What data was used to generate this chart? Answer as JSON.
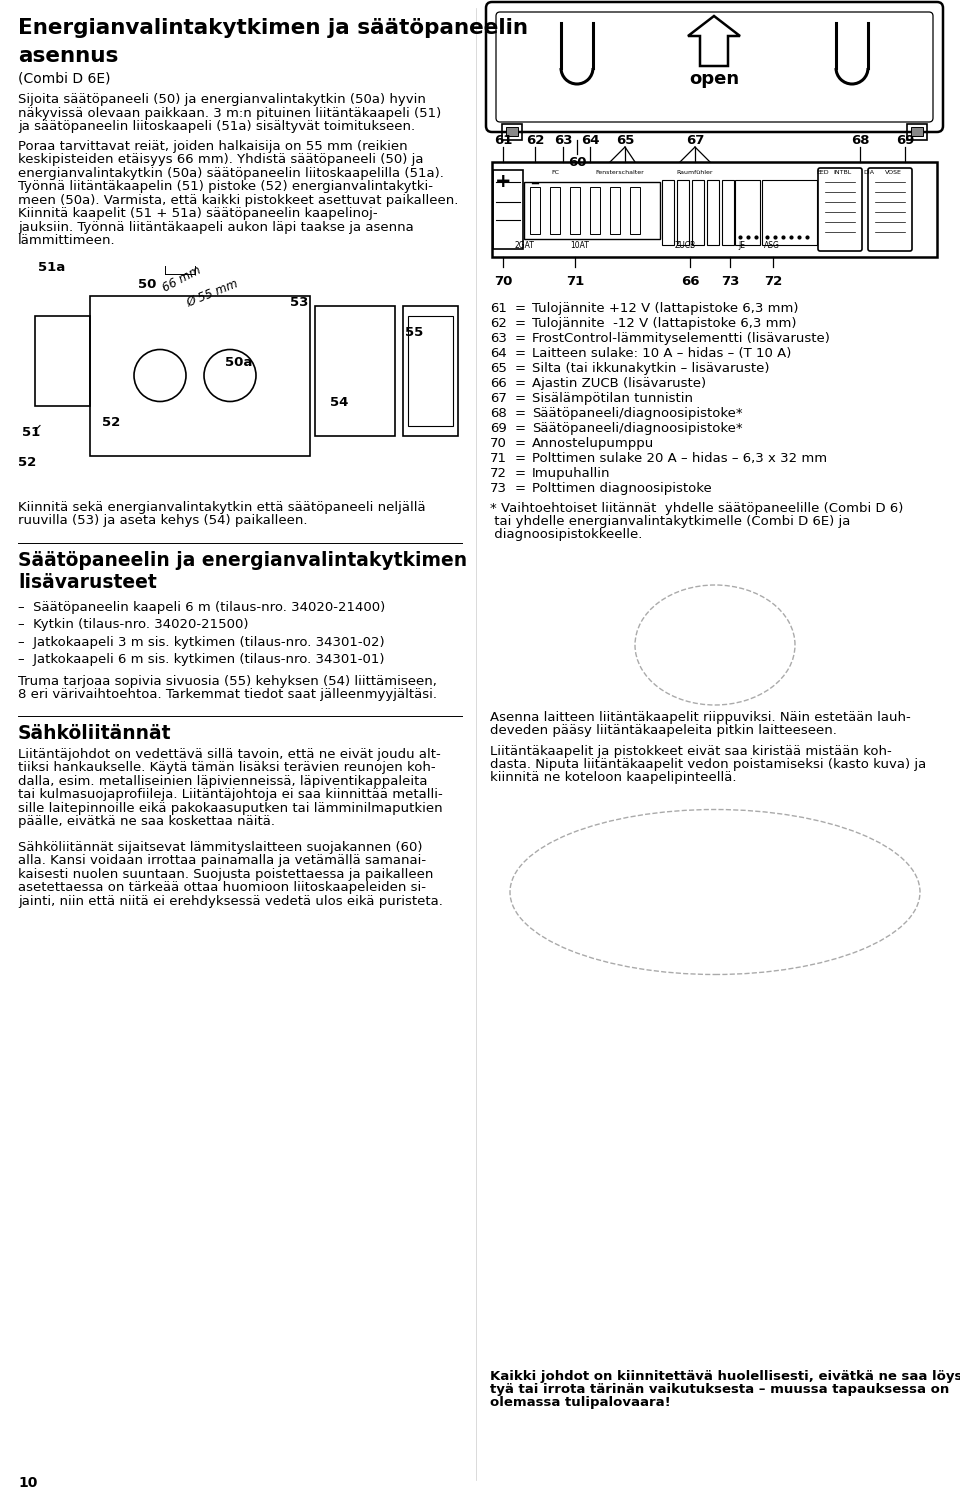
{
  "title_line1": "Energianvalintakytkimen ja säätöpaneelin",
  "title_line2": "asennus",
  "subtitle": "(Combi D 6E)",
  "para1": "Sijoita säätöpaneeli (50) ja energianvalintakytkin (50a) hyvin näkyvissä olevaan paikkaan. 3 m:n pituinen liitäntäkaapeli (51) ja säätöpaneelin liitoskaapeli (51a) sisältyvät toimitukseen.",
  "para2_lines": [
    "Poraa tarvittavat reiät, joiden halkaisija on 55 mm (reikien",
    "keskipisteiden etäisyys 66 mm). Yhdistä säätöpaneeli (50) ja",
    "energianvalintakytkin (50a) säätöpaneelin liitoskaapelilla (51a).",
    "Työnnä liitäntäkaapelin (51) pistoke (52) energianvalintakytki-",
    "meen (50a). Varmista, että kaikki pistokkeet asettuvat paikalleen.",
    "Kiinnitä kaapelit (51 + 51a) säätöpaneelin kaapelinoj-",
    "jauksiin. Työnnä liitäntäkaapeli aukon läpi taakse ja asenna",
    "lämmittimeen."
  ],
  "footnote1_lines": [
    "Kiinnitä sekä energianvalintakytkin että säätöpaneeli neljällä",
    "ruuvilla (53) ja aseta kehys (54) paikalleen."
  ],
  "section2_title_lines": [
    "Säätöpaneelin ja energianvalintakytkimen",
    "lisävarusteet"
  ],
  "bullet1": "–  Säätöpaneelin kaapeli 6 m (tilaus-nro. 34020-21400)",
  "bullet2": "–  Kytkin (tilaus-nro. 34020-21500)",
  "bullet3": "–  Jatkokaapeli 3 m sis. kytkimen (tilaus-nro. 34301-02)",
  "bullet4": "–  Jatkokaapeli 6 m sis. kytkimen (tilaus-nro. 34301-01)",
  "para3_lines": [
    "Truma tarjoaa sopivia sivuosia (55) kehyksen (54) liittämiseen,",
    "8 eri värivaihtoehtoa. Tarkemmat tiedot saat jälleenmyyjältäsi."
  ],
  "section3_title": "Sähköliitännät",
  "para4_lines": [
    "Liitäntäjohdot on vedettävä sillä tavoin, että ne eivät joudu alt-",
    "tiiksi hankaukselle. Käytä tämän lisäksi terävien reunojen koh-",
    "dalla, esim. metalliseinien läpivienneissä, läpiventikappaleita",
    "tai kulmasuojaprofiileja. Liitäntäjohtoja ei saa kiinnittää metalli-",
    "sille laitepinnoille eikä pakokaasuputken tai lämminilmaputkien",
    "päälle, eivätkä ne saa koskettaa näitä."
  ],
  "para5_lines": [
    "Sähköliitännät sijaitsevat lämmityslaitteen suojakannen (60)",
    "alla. Kansi voidaan irrottaa painamalla ja vetämällä samanai-",
    "kaisesti nuolen suuntaan. Suojusta poistettaessa ja paikalleen",
    "asetettaessa on tärkeää ottaa huomioon liitoskaapeleiden si-",
    "jainti, niin että niitä ei erehdyksessä vedetä ulos eikä puristeta."
  ],
  "right_para1_lines": [
    "Asenna laitteen liitäntäkaapelit riippuviksi. Näin estetään lauh-",
    "deveden pääsy liitäntäkaapeleita pitkin laitteeseen."
  ],
  "right_para2_lines": [
    "Liitäntäkaapelit ja pistokkeet eivät saa kiristää mistään koh-",
    "dasta. Niputa liitäntäkaapelit vedon poistamiseksi (kasto kuva) ja",
    "kiinnitä ne koteloon kaapelipinteellä."
  ],
  "right_para3_lines": [
    "Kaikki johdot on kiinnitettävä huolellisesti, eivätkä ne saa löys-",
    "tyä tai irrota tärinän vaikutuksesta – muussa tapauksessa on",
    "olemassa tulipalovaara!"
  ],
  "legend_lines": [
    [
      "61",
      "=",
      "Tulojännite +12 V (lattapistoke 6,3 mm)"
    ],
    [
      "62",
      "=",
      "Tulojännite  -12 V (lattapistoke 6,3 mm)"
    ],
    [
      "63",
      "=",
      "FrostControl-lämmityselementti (lisävaruste)"
    ],
    [
      "64",
      "=",
      "Laitteen sulake: 10 A – hidas – (T 10 A)"
    ],
    [
      "65",
      "=",
      "Silta (tai ikkunakytkin – lisävaruste)"
    ],
    [
      "66",
      "=",
      "Ajastin ZUCB (lisävaruste)"
    ],
    [
      "67",
      "=",
      "Sisälämpötilan tunnistin"
    ],
    [
      "68",
      "=",
      "Säätöpaneeli/diagnoosipistoke*"
    ],
    [
      "69",
      "=",
      "Säätöpaneeli/diagnoosipistoke*"
    ],
    [
      "70",
      "=",
      "Annostelupumppu"
    ],
    [
      "71",
      "=",
      "Polttimen sulake 20 A – hidas – 6,3 x 32 mm"
    ],
    [
      "72",
      "=",
      "Imupuhallin"
    ],
    [
      "73",
      "=",
      "Polttimen diagnoosipistoke"
    ]
  ],
  "footnote_star_lines": [
    "* Vaihtoehtoiset liitännät  yhdelle säätöpaneelille (Combi D 6)",
    " tai yhdelle energianvalintakytkimelle (Combi D 6E) ja",
    " diagnoosipistokkeelle."
  ],
  "page_num": "10",
  "bg_color": "#ffffff",
  "text_color": "#000000"
}
